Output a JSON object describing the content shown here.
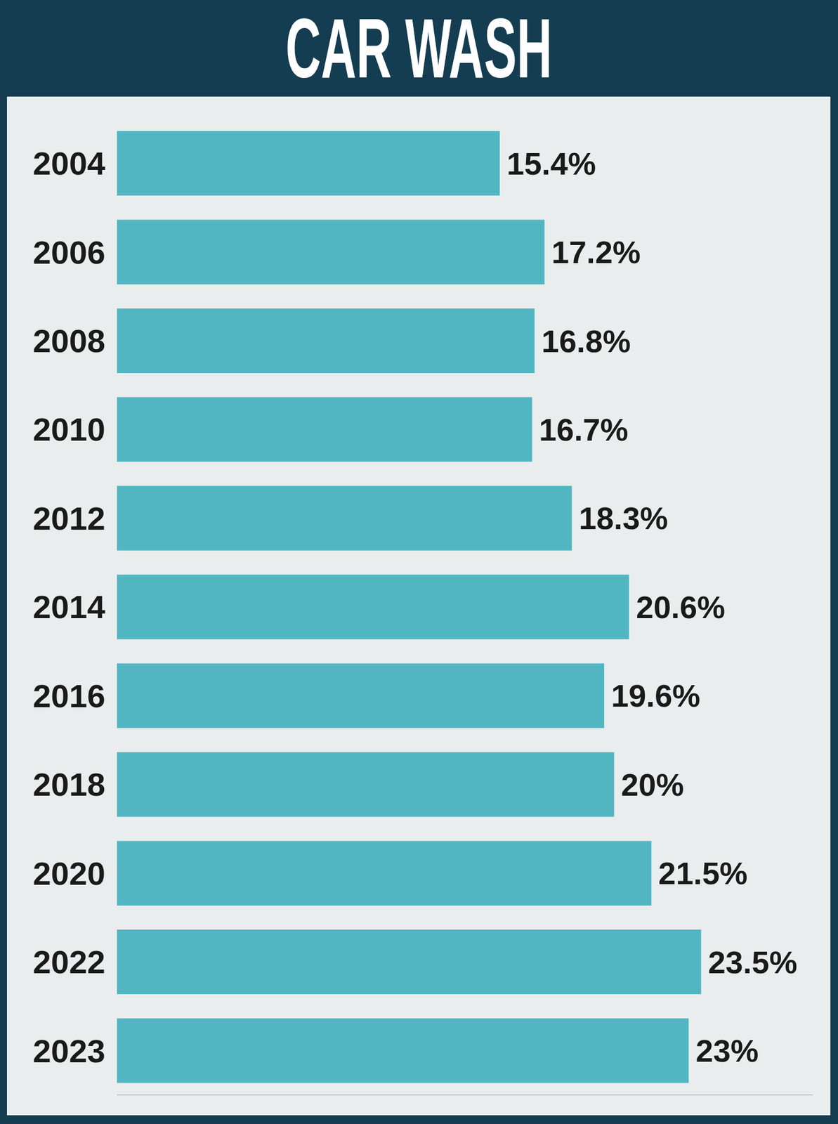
{
  "chart_data": {
    "type": "bar",
    "title": "CAR WASH",
    "orientation": "horizontal",
    "categories": [
      "2004",
      "2006",
      "2008",
      "2010",
      "2012",
      "2014",
      "2016",
      "2018",
      "2020",
      "2022",
      "2023"
    ],
    "values": [
      15.4,
      17.2,
      16.8,
      16.7,
      18.3,
      20.6,
      19.6,
      20,
      21.5,
      23.5,
      23
    ],
    "value_labels": [
      "15.4%",
      "17.2%",
      "16.8%",
      "16.7%",
      "18.3%",
      "20.6%",
      "19.6%",
      "20%",
      "21.5%",
      "23.5%",
      "23%"
    ],
    "color": "#52b6c2",
    "xlim": [
      0,
      28
    ],
    "data_labels": true,
    "tick_labels": "y",
    "grid": false
  }
}
